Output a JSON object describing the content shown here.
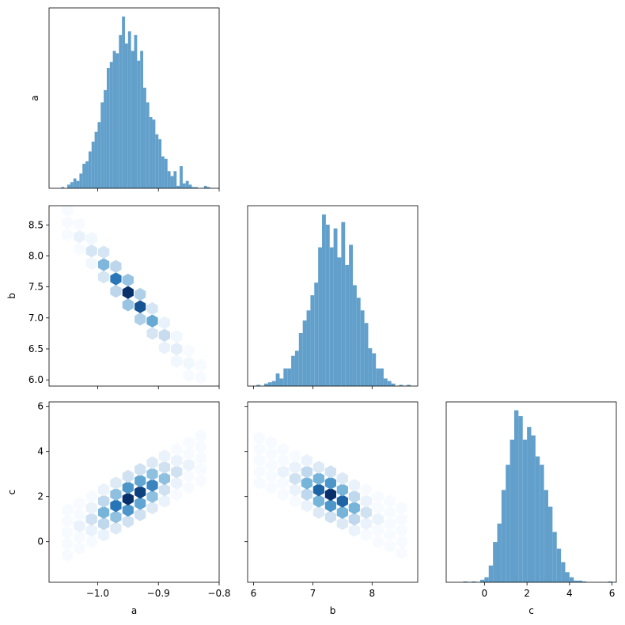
{
  "chart_data": [
    {
      "type": "histogram",
      "ylabel": "a",
      "color": "#62a0cb",
      "show_xtick_labels": false,
      "bins": [
        -1.06,
        -1.055,
        -1.05,
        -1.045,
        -1.04,
        -1.035,
        -1.03,
        -1.025,
        -1.02,
        -1.015,
        -1.01,
        -1.005,
        -1,
        -0.995,
        -0.99,
        -0.985,
        -0.98,
        -0.975,
        -0.97,
        -0.965,
        -0.96,
        -0.955,
        -0.95,
        -0.945,
        -0.94,
        -0.935,
        -0.93,
        -0.925,
        -0.92,
        -0.915,
        -0.91,
        -0.905,
        -0.9,
        -0.895,
        -0.89,
        -0.885,
        -0.88,
        -0.875,
        -0.87,
        -0.865,
        -0.86,
        -0.855,
        -0.85,
        -0.845,
        -0.84,
        -0.835,
        -0.83,
        -0.825,
        -0.82,
        -0.815
      ],
      "values": [
        1,
        0,
        3,
        5,
        8,
        6,
        12,
        20,
        22,
        30,
        38,
        46,
        54,
        70,
        80,
        98,
        103,
        112,
        110,
        125,
        140,
        118,
        128,
        112,
        125,
        104,
        112,
        82,
        70,
        58,
        56,
        44,
        40,
        26,
        24,
        14,
        10,
        14,
        2,
        18,
        4,
        6,
        3,
        1,
        1,
        0,
        0,
        2,
        1
      ],
      "xlim": [
        -1.08,
        -0.8
      ],
      "ylim": [
        0,
        147
      ],
      "xticks": [
        -1,
        -0.9,
        -0.8
      ]
    },
    {
      "type": "hexbin",
      "ylabel": "b",
      "colormap": [
        "#f7fbff",
        "#c6dbef",
        "#6baed6",
        "#2171b5",
        "#08306b"
      ],
      "show_xtick_labels": false,
      "show_ytick_labels": true,
      "x": [
        -1.05,
        -1.05,
        -1.05,
        -1.03,
        -1.03,
        -1.03,
        -1.01,
        -1.01,
        -1.01,
        -0.99,
        -0.99,
        -0.99,
        -0.97,
        -0.97,
        -0.97,
        -0.95,
        -0.95,
        -0.95,
        -0.93,
        -0.93,
        -0.93,
        -0.91,
        -0.91,
        -0.91,
        -0.89,
        -0.89,
        -0.89,
        -0.87,
        -0.87,
        -0.87,
        -0.85,
        -0.85,
        -0.85,
        -0.83,
        -0.83
      ],
      "y": [
        8.34,
        8.54,
        8.74,
        8.11,
        8.31,
        8.51,
        7.88,
        8.08,
        8.28,
        7.66,
        7.86,
        8.06,
        7.43,
        7.63,
        7.83,
        7.21,
        7.41,
        7.61,
        6.98,
        7.18,
        7.38,
        6.75,
        6.95,
        7.15,
        6.52,
        6.72,
        6.92,
        6.3,
        6.5,
        6.7,
        6.07,
        6.27,
        6.47,
        6.04,
        6.24
      ],
      "values": [
        1,
        1,
        1,
        1,
        3,
        1,
        2,
        6,
        2,
        6,
        14,
        6,
        9,
        22,
        9,
        12,
        30,
        12,
        10,
        26,
        10,
        6,
        16,
        6,
        3,
        8,
        3,
        2,
        4,
        2,
        1,
        2,
        1,
        1,
        1
      ],
      "xlim": [
        -1.08,
        -0.8
      ],
      "ylim": [
        5.9,
        8.81
      ],
      "xticks": [
        -1,
        -0.9,
        -0.8
      ],
      "yticks": [
        {
          "value": 6,
          "label": "6.0"
        },
        6.5,
        {
          "value": 7,
          "label": "7.0"
        },
        7.5,
        {
          "value": 8,
          "label": "8.0"
        },
        8.5
      ]
    },
    {
      "type": "histogram",
      "color": "#62a0cb",
      "show_xtick_labels": false,
      "bins": [
        6.05,
        6.115,
        6.18,
        6.245,
        6.31,
        6.375,
        6.44,
        6.505,
        6.57,
        6.635,
        6.7,
        6.765,
        6.83,
        6.895,
        6.96,
        7.025,
        7.09,
        7.155,
        7.22,
        7.285,
        7.35,
        7.415,
        7.48,
        7.545,
        7.61,
        7.675,
        7.74,
        7.805,
        7.87,
        7.935,
        8.0,
        8.065,
        8.13,
        8.195,
        8.26,
        8.325,
        8.39,
        8.455,
        8.52,
        8.585,
        8.65
      ],
      "values": [
        1,
        0,
        2,
        3,
        4,
        10,
        6,
        14,
        14,
        24,
        28,
        42,
        52,
        60,
        72,
        82,
        110,
        136,
        128,
        110,
        125,
        102,
        130,
        96,
        112,
        80,
        70,
        60,
        50,
        30,
        26,
        14,
        14,
        6,
        4,
        2,
        0,
        1,
        0,
        1
      ],
      "xlim": [
        5.9,
        8.77
      ],
      "ylim": [
        0,
        143
      ],
      "xticks": [
        6,
        7,
        8
      ]
    },
    {
      "type": "hexbin",
      "xlabel": "a",
      "ylabel": "c",
      "colormap": [
        "#f7fbff",
        "#c6dbef",
        "#6baed6",
        "#2171b5",
        "#08306b"
      ],
      "show_xtick_labels": true,
      "show_ytick_labels": true,
      "x": [
        -1.05,
        -1.05,
        -1.05,
        -1.05,
        -1.05,
        -1.03,
        -1.03,
        -1.03,
        -1.03,
        -1.03,
        -1.01,
        -1.01,
        -1.01,
        -1.01,
        -1.01,
        -0.99,
        -0.99,
        -0.99,
        -0.99,
        -0.99,
        -0.97,
        -0.97,
        -0.97,
        -0.97,
        -0.97,
        -0.95,
        -0.95,
        -0.95,
        -0.95,
        -0.95,
        -0.93,
        -0.93,
        -0.93,
        -0.93,
        -0.93,
        -0.91,
        -0.91,
        -0.91,
        -0.91,
        -0.91,
        -0.89,
        -0.89,
        -0.89,
        -0.89,
        -0.89,
        -0.87,
        -0.87,
        -0.87,
        -0.87,
        -0.87,
        -0.85,
        -0.85,
        -0.85,
        -0.85,
        -0.85,
        -0.83,
        -0.83,
        -0.83,
        -0.83,
        -0.83
      ],
      "y": [
        -0.6,
        -0.1,
        0.4,
        0.9,
        1.4,
        -0.3,
        0.2,
        0.7,
        1.2,
        1.7,
        0,
        0.5,
        1,
        1.5,
        2,
        0.3,
        0.8,
        1.3,
        1.8,
        2.3,
        0.6,
        1.1,
        1.6,
        2.1,
        2.6,
        0.9,
        1.4,
        1.9,
        2.4,
        2.9,
        1.2,
        1.7,
        2.2,
        2.7,
        3.2,
        1.5,
        2,
        2.5,
        3,
        3.5,
        1.8,
        2.3,
        2.8,
        3.3,
        3.8,
        2.1,
        2.6,
        3.1,
        3.6,
        4.1,
        2.4,
        2.9,
        3.4,
        3.9,
        4.4,
        2.7,
        3.2,
        3.7,
        4.2,
        4.7
      ],
      "values": [
        1,
        1,
        1,
        1,
        1,
        1,
        1,
        2,
        1,
        1,
        1,
        2,
        4,
        2,
        1,
        2,
        5,
        8,
        5,
        2,
        3,
        7,
        12,
        7,
        3,
        4,
        10,
        16,
        10,
        4,
        4,
        9,
        15,
        9,
        4,
        3,
        7,
        11,
        7,
        3,
        2,
        4,
        7,
        4,
        2,
        1,
        2,
        4,
        2,
        1,
        1,
        1,
        2,
        1,
        1,
        1,
        1,
        1,
        1,
        1
      ],
      "xlim": [
        -1.08,
        -0.8
      ],
      "ylim": [
        -1.8,
        6.2
      ],
      "xticks": [
        {
          "value": -1,
          "label": "−1.0"
        },
        {
          "value": -0.9,
          "label": "−0.9"
        },
        {
          "value": -0.8,
          "label": "−0.8"
        }
      ],
      "yticks": [
        0,
        2,
        4,
        6
      ]
    },
    {
      "type": "hexbin",
      "xlabel": "b",
      "colormap": [
        "#f7fbff",
        "#c6dbef",
        "#6baed6",
        "#2171b5",
        "#08306b"
      ],
      "show_xtick_labels": true,
      "show_ytick_labels": false,
      "x": [
        6.1,
        6.1,
        6.1,
        6.1,
        6.1,
        6.3,
        6.3,
        6.3,
        6.3,
        6.3,
        6.5,
        6.5,
        6.5,
        6.5,
        6.5,
        6.7,
        6.7,
        6.7,
        6.7,
        6.7,
        6.9,
        6.9,
        6.9,
        6.9,
        6.9,
        7.1,
        7.1,
        7.1,
        7.1,
        7.1,
        7.3,
        7.3,
        7.3,
        7.3,
        7.3,
        7.5,
        7.5,
        7.5,
        7.5,
        7.5,
        7.7,
        7.7,
        7.7,
        7.7,
        7.7,
        7.9,
        7.9,
        7.9,
        7.9,
        7.9,
        8.1,
        8.1,
        8.1,
        8.1,
        8.1,
        8.3,
        8.3,
        8.3,
        8.3,
        8.3,
        8.5,
        8.5,
        8.5,
        8.5,
        8.5
      ],
      "y": [
        2.6,
        3.1,
        3.6,
        4.1,
        4.6,
        2.4,
        2.9,
        3.4,
        3.9,
        4.4,
        2.1,
        2.6,
        3.1,
        3.6,
        4.1,
        1.8,
        2.3,
        2.8,
        3.3,
        3.8,
        1.6,
        2.1,
        2.6,
        3.1,
        3.6,
        1.3,
        1.8,
        2.3,
        2.8,
        3.3,
        1.1,
        1.6,
        2.1,
        2.6,
        3.1,
        0.8,
        1.3,
        1.8,
        2.3,
        2.8,
        0.5,
        1,
        1.5,
        2,
        2.5,
        0.3,
        0.8,
        1.3,
        1.8,
        2.3,
        0,
        0.5,
        1,
        1.5,
        2,
        -0.2,
        0.3,
        0.8,
        1.3,
        1.8,
        -0.5,
        0,
        0.5,
        1,
        1.5
      ],
      "values": [
        1,
        1,
        1,
        1,
        1,
        1,
        1,
        1,
        1,
        1,
        1,
        1,
        2,
        1,
        1,
        1,
        2,
        4,
        2,
        1,
        2,
        5,
        8,
        5,
        2,
        3,
        8,
        13,
        8,
        3,
        4,
        10,
        16,
        10,
        4,
        3,
        8,
        13,
        8,
        3,
        2,
        5,
        8,
        5,
        2,
        1,
        2,
        4,
        2,
        1,
        1,
        1,
        2,
        1,
        1,
        1,
        1,
        1,
        1,
        1,
        1,
        1,
        1,
        1,
        1
      ],
      "xlim": [
        5.9,
        8.77
      ],
      "ylim": [
        -1.8,
        6.2
      ],
      "xticks": [
        6,
        7,
        8
      ],
      "yticks": [
        0,
        2,
        4,
        6
      ]
    },
    {
      "type": "histogram",
      "xlabel": "c",
      "color": "#62a0cb",
      "show_xtick_labels": true,
      "bins": [
        -1,
        -0.8,
        -0.6,
        -0.4,
        -0.2,
        0,
        0.2,
        0.4,
        0.6,
        0.8,
        1,
        1.2,
        1.4,
        1.6,
        1.8,
        2,
        2.2,
        2.4,
        2.6,
        2.8,
        3,
        3.2,
        3.4,
        3.6,
        3.8,
        4,
        4.2,
        4.4,
        4.6,
        4.8,
        5,
        5.2,
        5.4,
        5.6,
        5.8,
        6
      ],
      "values": [
        1,
        0,
        1,
        0,
        3,
        6,
        20,
        48,
        70,
        110,
        140,
        170,
        205,
        198,
        170,
        185,
        175,
        150,
        140,
        110,
        90,
        60,
        40,
        24,
        12,
        6,
        2,
        2,
        1,
        0,
        0,
        0,
        0,
        0,
        1
      ],
      "xlim": [
        -1.8,
        6.2
      ],
      "ylim": [
        0,
        215
      ],
      "xticks": [
        0,
        2,
        4,
        6
      ]
    }
  ]
}
